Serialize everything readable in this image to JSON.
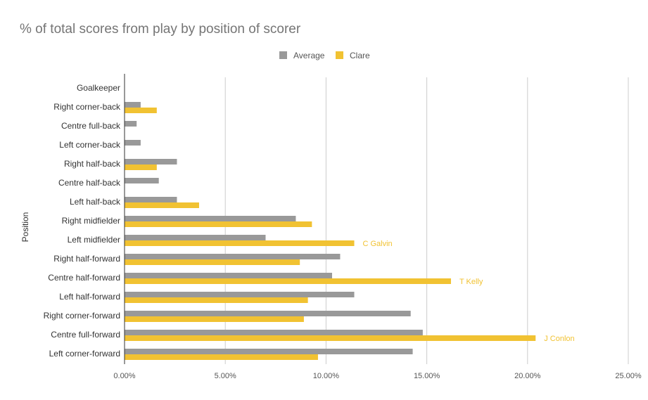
{
  "chart_data": {
    "type": "bar",
    "orientation": "horizontal",
    "title": "% of total scores from play by position of scorer",
    "xlabel": "",
    "ylabel": "Position",
    "xlim": [
      0,
      25
    ],
    "x_ticks": [
      "0.00%",
      "5.00%",
      "10.00%",
      "15.00%",
      "20.00%",
      "25.00%"
    ],
    "grid": true,
    "legend_position": "top",
    "categories": [
      "Goalkeeper",
      "Right corner-back",
      "Centre full-back",
      "Left corner-back",
      "Right half-back",
      "Centre half-back",
      "Left half-back",
      "Right midfielder",
      "Left midfielder",
      "Right half-forward",
      "Centre half-forward",
      "Left half-forward",
      "Right corner-forward",
      "Centre full-forward",
      "Left corner-forward"
    ],
    "series": [
      {
        "name": "Average",
        "color": "#999999",
        "values": [
          0,
          0.8,
          0.6,
          0.8,
          2.6,
          1.7,
          2.6,
          8.5,
          7.0,
          10.7,
          10.3,
          11.4,
          14.2,
          14.8,
          14.3
        ]
      },
      {
        "name": "Clare",
        "color": "#F1C232",
        "values": [
          0,
          1.6,
          0,
          0,
          1.6,
          0,
          3.7,
          9.3,
          11.4,
          8.7,
          16.2,
          9.1,
          8.9,
          20.4,
          9.6
        ]
      }
    ],
    "annotations": [
      {
        "category": "Left midfielder",
        "series": "Clare",
        "text": "C Galvin"
      },
      {
        "category": "Centre half-forward",
        "series": "Clare",
        "text": "T Kelly"
      },
      {
        "category": "Centre full-forward",
        "series": "Clare",
        "text": "J Conlon"
      }
    ]
  }
}
